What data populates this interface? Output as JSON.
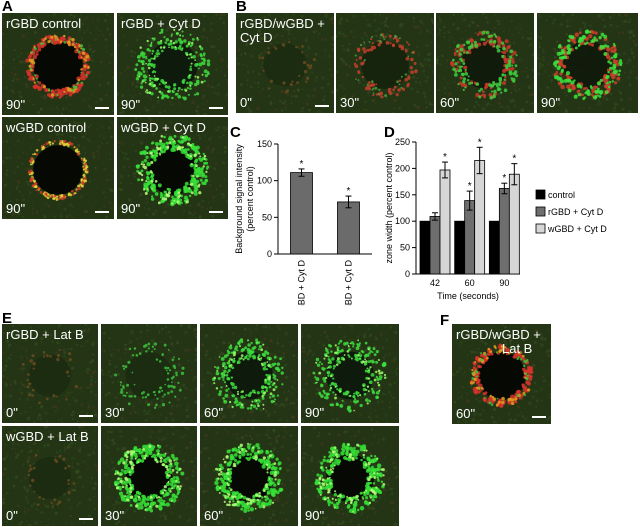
{
  "panels": {
    "A": {
      "label": "A",
      "tiles": [
        {
          "caption_top": "rGBD control",
          "caption_bottom": "90\"",
          "ring": "red-yellow"
        },
        {
          "caption_top": "rGBD + Cyt D",
          "caption_bottom": "90\"",
          "ring": "green-spread"
        },
        {
          "caption_top": "wGBD control",
          "caption_bottom": "90\"",
          "ring": "yellow-thin"
        },
        {
          "caption_top": "wGBD + Cyt D",
          "caption_bottom": "90\"",
          "ring": "green-bright"
        }
      ]
    },
    "B": {
      "label": "B",
      "caption_top": "rGBD/wGBD + Cyt D",
      "frames": [
        {
          "time": "0\"",
          "ring": "faint"
        },
        {
          "time": "30\"",
          "ring": "red-weak"
        },
        {
          "time": "60\"",
          "ring": "mixed"
        },
        {
          "time": "90\"",
          "ring": "mixed-strong"
        }
      ]
    },
    "C": {
      "label": "C"
    },
    "D": {
      "label": "D"
    },
    "E": {
      "label": "E",
      "rows": [
        {
          "caption_top": "rGBD + Lat B",
          "frames": [
            {
              "time": "0\"",
              "ring": "faint"
            },
            {
              "time": "30\"",
              "ring": "green-weak"
            },
            {
              "time": "60\"",
              "ring": "green-spread"
            },
            {
              "time": "90\"",
              "ring": "green-spread"
            }
          ]
        },
        {
          "caption_top": "wGBD + Lat B",
          "frames": [
            {
              "time": "0\"",
              "ring": "faint"
            },
            {
              "time": "30\"",
              "ring": "green-bright"
            },
            {
              "time": "60\"",
              "ring": "green-bright"
            },
            {
              "time": "90\"",
              "ring": "green-bright"
            }
          ]
        }
      ]
    },
    "F": {
      "label": "F",
      "caption_top_line1": "rGBD/wGBD +",
      "caption_top_line2": "Lat B",
      "caption_bottom": "60\"",
      "ring": "red-yellow"
    }
  },
  "chart_data": [
    {
      "type": "bar",
      "panel": "C",
      "categories": [
        "rGBD + Cyt D",
        "wGBD + Cyt D"
      ],
      "values": [
        111,
        71
      ],
      "errors": [
        5,
        8
      ],
      "significance": [
        "*",
        "*"
      ],
      "ylabel": "Background signal intensity\n(percent control)",
      "ylim": [
        0,
        150
      ],
      "yticks": [
        0,
        50,
        100,
        150
      ],
      "bar_color": "#6b6b6b"
    },
    {
      "type": "bar",
      "panel": "D",
      "categories": [
        "42",
        "60",
        "90"
      ],
      "xlabel": "Time (seconds)",
      "ylabel": "zone width (percent control)",
      "ylim": [
        0,
        250
      ],
      "yticks": [
        0,
        50,
        100,
        150,
        200,
        250
      ],
      "series": [
        {
          "name": "control",
          "color": "#000000",
          "values": [
            100,
            100,
            100
          ],
          "errors": [
            0,
            0,
            0
          ],
          "significance": [
            "",
            "",
            ""
          ]
        },
        {
          "name": "rGBD + Cyt D",
          "color": "#6e6e6e",
          "values": [
            109,
            139,
            162
          ],
          "errors": [
            7,
            18,
            10
          ],
          "significance": [
            "",
            "*",
            "*"
          ]
        },
        {
          "name": "wGBD + Cyt D",
          "color": "#d6d6d6",
          "values": [
            197,
            215,
            189
          ],
          "errors": [
            15,
            25,
            20
          ],
          "significance": [
            "*",
            "*",
            "*"
          ]
        }
      ],
      "legend_position": "right"
    }
  ]
}
